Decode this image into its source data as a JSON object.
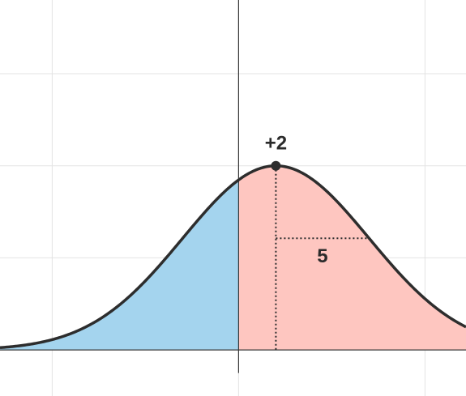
{
  "chart_data": {
    "type": "area",
    "title": "",
    "xlabel": "",
    "ylabel": "",
    "grid": true,
    "legend": "none",
    "curve": "normal-density",
    "mean_x": 2,
    "sd": 5,
    "peak_y": 2,
    "xlim": [
      -12.8,
      12.2
    ],
    "ylim": [
      -0.5,
      3.8
    ],
    "grid_x": [
      -10,
      0,
      10
    ],
    "grid_y": [
      0,
      1,
      2,
      3
    ],
    "split_x": 0,
    "region_left_color": "#a4d4ee",
    "region_right_color": "#fec6c0",
    "curve_color": "#2d2d2d",
    "annotations": {
      "peak_label": "+2",
      "width_label": "5"
    }
  }
}
